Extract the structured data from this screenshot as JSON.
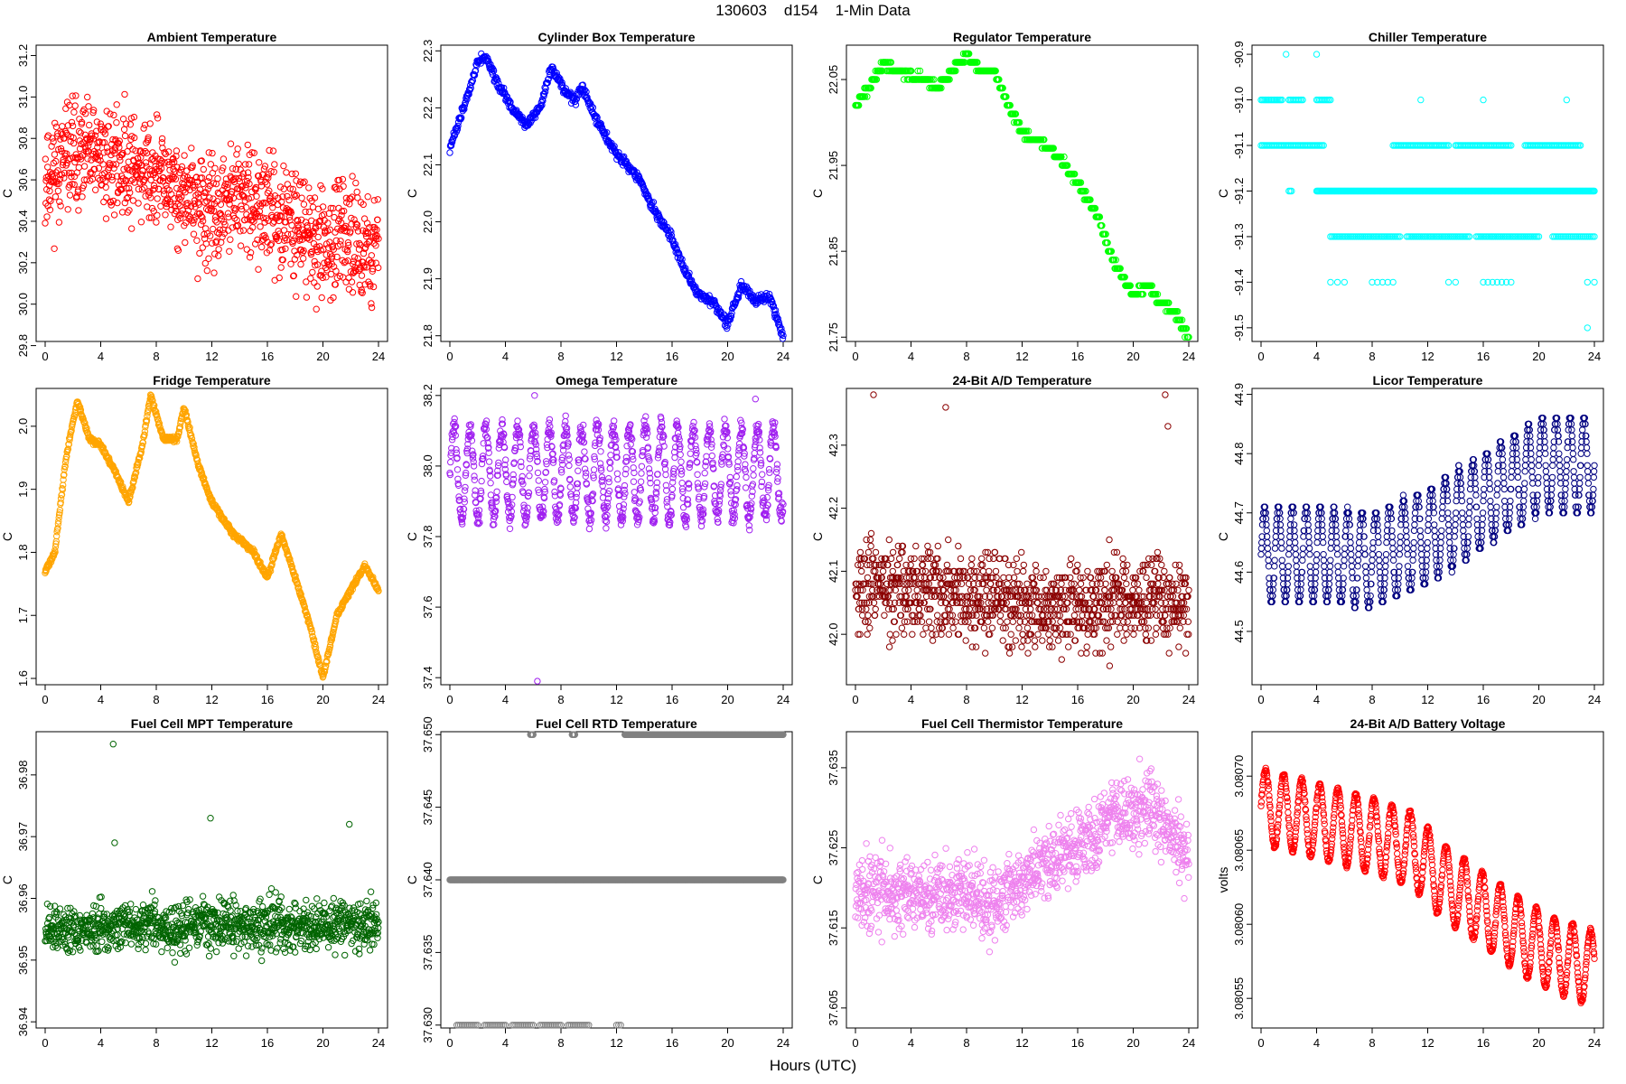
{
  "title": "130603    d154    1-Min Data",
  "x_axis_title": "Hours (UTC)",
  "chart_data": [
    {
      "type": "scatter",
      "title": "Ambient Temperature",
      "ylabel": "C",
      "color": "#ff0000",
      "xlim": [
        0,
        24
      ],
      "ylim": [
        29.82,
        31.25
      ],
      "xticks": [
        0,
        4,
        8,
        12,
        16,
        20,
        24
      ],
      "yticks": [
        "29.8",
        "30.0",
        "30.2",
        "30.4",
        "30.6",
        "30.8",
        "31.0",
        "31.2"
      ],
      "trend": [
        [
          0,
          30.62
        ],
        [
          2,
          30.72
        ],
        [
          4,
          30.7
        ],
        [
          6,
          30.68
        ],
        [
          8,
          30.62
        ],
        [
          10,
          30.52
        ],
        [
          12,
          30.42
        ],
        [
          14,
          30.52
        ],
        [
          16,
          30.45
        ],
        [
          18,
          30.4
        ],
        [
          20,
          30.28
        ],
        [
          22,
          30.32
        ],
        [
          24,
          30.25
        ]
      ],
      "noise": 0.25,
      "seed": 11,
      "count": 1100
    },
    {
      "type": "scatter",
      "title": "Cylinder Box Temperature",
      "ylabel": "C",
      "color": "#0000ff",
      "xlim": [
        0,
        24
      ],
      "ylim": [
        21.79,
        22.31
      ],
      "xticks": [
        0,
        4,
        8,
        12,
        16,
        20,
        24
      ],
      "yticks": [
        "21.8",
        "21.9",
        "22.0",
        "22.1",
        "22.2",
        "22.3"
      ],
      "trend": [
        [
          0,
          22.13
        ],
        [
          1,
          22.2
        ],
        [
          2,
          22.28
        ],
        [
          2.6,
          22.29
        ],
        [
          3.5,
          22.24
        ],
        [
          4.5,
          22.2
        ],
        [
          5.5,
          22.17
        ],
        [
          6.5,
          22.2
        ],
        [
          7.3,
          22.27
        ],
        [
          8,
          22.24
        ],
        [
          9,
          22.21
        ],
        [
          9.5,
          22.24
        ],
        [
          10.5,
          22.18
        ],
        [
          12,
          22.12
        ],
        [
          13.5,
          22.08
        ],
        [
          14.5,
          22.03
        ],
        [
          16,
          21.97
        ],
        [
          17,
          21.91
        ],
        [
          18,
          21.87
        ],
        [
          19,
          21.86
        ],
        [
          20,
          21.82
        ],
        [
          21,
          21.89
        ],
        [
          22,
          21.86
        ],
        [
          23,
          21.87
        ],
        [
          24,
          21.8
        ]
      ],
      "noise": 0.008,
      "seed": 12,
      "count": 700
    },
    {
      "type": "scatter",
      "title": "Regulator Temperature",
      "ylabel": "C",
      "color": "#00ff00",
      "xlim": [
        0,
        24
      ],
      "ylim": [
        21.745,
        22.09
      ],
      "xticks": [
        0,
        4,
        8,
        12,
        16,
        20,
        24
      ],
      "yticks": [
        "21.75",
        "21.85",
        "21.95",
        "22.05"
      ],
      "trend": [
        [
          0,
          22.02
        ],
        [
          1,
          22.04
        ],
        [
          2,
          22.07
        ],
        [
          3,
          22.06
        ],
        [
          5,
          22.05
        ],
        [
          6,
          22.04
        ],
        [
          7,
          22.06
        ],
        [
          8,
          22.08
        ],
        [
          9,
          22.06
        ],
        [
          10,
          22.06
        ],
        [
          11,
          22.02
        ],
        [
          12,
          21.99
        ],
        [
          14,
          21.97
        ],
        [
          16,
          21.93
        ],
        [
          17.5,
          21.89
        ],
        [
          18.5,
          21.84
        ],
        [
          20,
          21.8
        ],
        [
          21,
          21.81
        ],
        [
          22,
          21.79
        ],
        [
          23,
          21.78
        ],
        [
          24,
          21.75
        ]
      ],
      "noise": 0.004,
      "step": 0.01,
      "seed": 13,
      "count": 600
    },
    {
      "type": "scatter",
      "title": "Chiller Temperature",
      "ylabel": "C",
      "color": "#00ffff",
      "xlim": [
        0,
        24
      ],
      "ylim": [
        -91.53,
        -90.88
      ],
      "xticks": [
        0,
        4,
        8,
        12,
        16,
        20,
        24
      ],
      "yticks": [
        "-91.5",
        "-91.4",
        "-91.3",
        "-91.2",
        "-91.1",
        "-91.0",
        "-90.9"
      ],
      "levels": [
        {
          "y": -91.0,
          "ranges": [
            [
              0,
              1.5
            ],
            [
              2,
              3
            ],
            [
              4,
              5
            ]
          ],
          "n": 40
        },
        {
          "y": -91.1,
          "ranges": [
            [
              0,
              4.5
            ],
            [
              9.5,
              13.5
            ],
            [
              14,
              18
            ],
            [
              19,
              23
            ]
          ],
          "n": 160
        },
        {
          "y": -91.2,
          "ranges": [
            [
              2,
              2.2
            ],
            [
              4,
              24
            ]
          ],
          "n": 320
        },
        {
          "y": -91.3,
          "ranges": [
            [
              5,
              10
            ],
            [
              10.5,
              15
            ],
            [
              15.5,
              20
            ],
            [
              21,
              24
            ]
          ],
          "n": 150
        },
        {
          "y": -91.4,
          "ranges": [
            [
              5,
              6
            ],
            [
              8,
              9.5
            ],
            [
              13.5,
              14
            ],
            [
              16,
              18
            ],
            [
              23.5,
              24
            ]
          ],
          "n": 18
        }
      ],
      "outliers": [
        [
          1.8,
          -90.9
        ],
        [
          4,
          -90.9
        ],
        [
          23.5,
          -91.5
        ],
        [
          11.5,
          -91.0
        ],
        [
          16,
          -91.0
        ],
        [
          22,
          -91.0
        ]
      ],
      "seed": 14
    },
    {
      "type": "scatter",
      "title": "Fridge Temperature",
      "ylabel": "C",
      "color": "#ffa500",
      "xlim": [
        0,
        24
      ],
      "ylim": [
        1.59,
        2.06
      ],
      "xticks": [
        0,
        4,
        8,
        12,
        16,
        20,
        24
      ],
      "yticks": [
        "1.6",
        "1.7",
        "1.8",
        "1.9",
        "2.0"
      ],
      "trend": [
        [
          0,
          1.77
        ],
        [
          0.7,
          1.8
        ],
        [
          1.5,
          1.95
        ],
        [
          2.3,
          2.04
        ],
        [
          3.2,
          1.98
        ],
        [
          4,
          1.97
        ],
        [
          5,
          1.93
        ],
        [
          6,
          1.88
        ],
        [
          7,
          1.97
        ],
        [
          7.6,
          2.05
        ],
        [
          8.5,
          1.98
        ],
        [
          9.5,
          1.98
        ],
        [
          10,
          2.03
        ],
        [
          11,
          1.94
        ],
        [
          12,
          1.88
        ],
        [
          13.5,
          1.83
        ],
        [
          15,
          1.8
        ],
        [
          16,
          1.76
        ],
        [
          17,
          1.83
        ],
        [
          18,
          1.76
        ],
        [
          19,
          1.69
        ],
        [
          20,
          1.6
        ],
        [
          21,
          1.7
        ],
        [
          22,
          1.74
        ],
        [
          23,
          1.78
        ],
        [
          24,
          1.74
        ]
      ],
      "noise": 0.004,
      "seed": 15,
      "count": 900
    },
    {
      "type": "scatter",
      "title": "Omega Temperature",
      "ylabel": "C",
      "color": "#a020f0",
      "xlim": [
        0,
        24
      ],
      "ylim": [
        37.38,
        38.22
      ],
      "xticks": [
        0,
        4,
        8,
        12,
        16,
        20,
        24
      ],
      "yticks": [
        "37.4",
        "37.6",
        "37.8",
        "38.0",
        "38.2"
      ],
      "trend": [
        [
          0,
          37.98
        ],
        [
          24,
          37.98
        ]
      ],
      "osc": 0.13,
      "period": 1.15,
      "noise": 0.03,
      "outliers": [
        [
          6.3,
          37.39
        ],
        [
          6.1,
          38.2
        ],
        [
          22,
          38.19
        ]
      ],
      "seed": 16,
      "count": 1000
    },
    {
      "type": "scatter",
      "title": "24-Bit A/D Temperature",
      "ylabel": "C",
      "color": "#8b0000",
      "xlim": [
        0,
        24
      ],
      "ylim": [
        41.92,
        42.39
      ],
      "xticks": [
        0,
        4,
        8,
        12,
        16,
        20,
        24
      ],
      "yticks": [
        "42.0",
        "42.1",
        "42.2",
        "42.3"
      ],
      "trend": [
        [
          0,
          42.08
        ],
        [
          4,
          42.07
        ],
        [
          8,
          42.06
        ],
        [
          12,
          42.05
        ],
        [
          16,
          42.04
        ],
        [
          20,
          42.06
        ],
        [
          24,
          42.05
        ]
      ],
      "noise": 0.07,
      "step": 0.01,
      "spikes": [
        [
          1.3,
          42.38
        ],
        [
          6.5,
          42.36
        ],
        [
          22.3,
          42.38
        ],
        [
          22.5,
          42.33
        ]
      ],
      "seed": 17,
      "count": 1100
    },
    {
      "type": "scatter",
      "title": "Licor Temperature",
      "ylabel": "C",
      "color": "#000080",
      "xlim": [
        0,
        24
      ],
      "ylim": [
        44.41,
        44.91
      ],
      "xticks": [
        0,
        4,
        8,
        12,
        16,
        20,
        24
      ],
      "yticks": [
        "44.5",
        "44.6",
        "44.7",
        "44.8",
        "44.9"
      ],
      "trend": [
        [
          0,
          44.63
        ],
        [
          4,
          44.63
        ],
        [
          8,
          44.62
        ],
        [
          12,
          44.66
        ],
        [
          16,
          44.72
        ],
        [
          20,
          44.78
        ],
        [
          24,
          44.78
        ]
      ],
      "osc": 0.08,
      "period": 1.0,
      "noise": 0.004,
      "step": 0.01,
      "seed": 18,
      "count": 1000
    },
    {
      "type": "scatter",
      "title": "Fuel Cell MPT Temperature",
      "ylabel": "C",
      "color": "#006400",
      "xlim": [
        0,
        24
      ],
      "ylim": [
        36.939,
        36.987
      ],
      "xticks": [
        0,
        4,
        8,
        12,
        16,
        20,
        24
      ],
      "yticks": [
        "36.94",
        "36.95",
        "36.96",
        "36.97",
        "36.98"
      ],
      "trend": [
        [
          0,
          36.955
        ],
        [
          24,
          36.956
        ]
      ],
      "noise": 0.004,
      "outliers": [
        [
          4.9,
          36.985
        ],
        [
          11.9,
          36.973
        ],
        [
          21.9,
          36.972
        ],
        [
          5,
          36.969
        ]
      ],
      "seed": 19,
      "count": 1100
    },
    {
      "type": "scatter",
      "title": "Fuel Cell RTD Temperature",
      "ylabel": "C",
      "color": "#808080",
      "xlim": [
        0,
        24
      ],
      "ylim": [
        37.6298,
        37.6502
      ],
      "xticks": [
        0,
        4,
        8,
        12,
        16,
        20,
        24
      ],
      "yticks": [
        "37.630",
        "37.635",
        "37.640",
        "37.645",
        "37.650"
      ],
      "levels": [
        {
          "y": 37.64,
          "ranges": [
            [
              0,
              24
            ]
          ],
          "n": 700
        },
        {
          "y": 37.65,
          "ranges": [
            [
              5.8,
              6
            ],
            [
              8.8,
              9
            ],
            [
              12.6,
              14
            ],
            [
              14,
              24
            ]
          ],
          "n": 320
        },
        {
          "y": 37.63,
          "ranges": [
            [
              0.5,
              2
            ],
            [
              2.5,
              4
            ],
            [
              4.5,
              6
            ],
            [
              6.5,
              8
            ],
            [
              8.5,
              10
            ],
            [
              12,
              12.3
            ]
          ],
          "n": 70
        }
      ],
      "seed": 20
    },
    {
      "type": "scatter",
      "title": "Fuel Cell Thermistor Temperature",
      "ylabel": "C",
      "color": "#ee82ee",
      "xlim": [
        0,
        24
      ],
      "ylim": [
        37.6025,
        37.6395
      ],
      "xticks": [
        0,
        4,
        8,
        12,
        16,
        20,
        24
      ],
      "yticks": [
        "37.605",
        "37.615",
        "37.625",
        "37.635"
      ],
      "trend": [
        [
          0,
          37.62
        ],
        [
          4,
          37.619
        ],
        [
          8,
          37.619
        ],
        [
          10,
          37.618
        ],
        [
          12,
          37.621
        ],
        [
          16,
          37.625
        ],
        [
          19,
          37.629
        ],
        [
          21,
          37.63
        ],
        [
          24,
          37.624
        ]
      ],
      "noise": 0.0045,
      "seed": 21,
      "count": 1100
    },
    {
      "type": "scatter",
      "title": "24-Bit A/D Battery Voltage",
      "ylabel": "volts",
      "color": "#ff0000",
      "xlim": [
        0,
        24
      ],
      "ylim": [
        3.08053,
        3.08073
      ],
      "xticks": [
        0,
        4,
        8,
        12,
        16,
        20,
        24
      ],
      "yticks": [
        "3.08055",
        "3.08060",
        "3.08065",
        "3.08070"
      ],
      "trend": [
        [
          0,
          3.08068
        ],
        [
          4,
          3.08067
        ],
        [
          8,
          3.08066
        ],
        [
          11,
          3.08065
        ],
        [
          13,
          3.08063
        ],
        [
          16,
          3.08061
        ],
        [
          19,
          3.08059
        ],
        [
          21,
          3.08058
        ],
        [
          24,
          3.08057
        ]
      ],
      "osc": 2.5e-05,
      "period": 1.3,
      "noise": 1.5e-06,
      "seed": 22,
      "count": 1000
    }
  ]
}
